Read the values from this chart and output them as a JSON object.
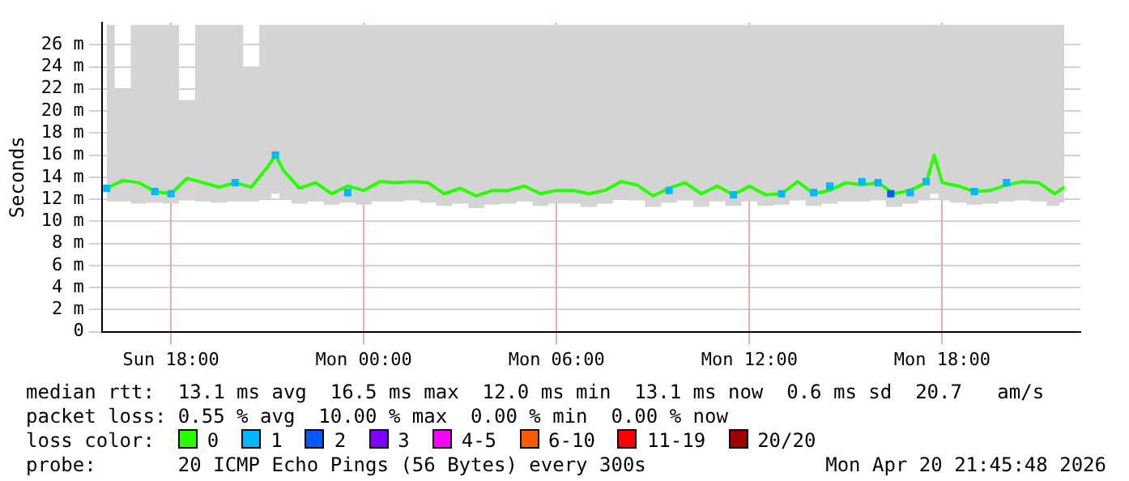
{
  "chart_data": {
    "type": "line",
    "ylabel": "Seconds",
    "xlim": [
      "2026-04-19T15:51",
      "2026-04-20T22:18"
    ],
    "ylim": [
      0,
      28
    ],
    "xticks": [
      {
        "value": "2026-04-19T18:00",
        "label": "Sun 18:00"
      },
      {
        "value": "2026-04-20T00:00",
        "label": "Mon 00:00"
      },
      {
        "value": "2026-04-20T06:00",
        "label": "Mon 06:00"
      },
      {
        "value": "2026-04-20T12:00",
        "label": "Mon 12:00"
      },
      {
        "value": "2026-04-20T18:00",
        "label": "Mon 18:00"
      }
    ],
    "yticks": [
      0,
      {
        "value": 2,
        "label": "2 m"
      },
      {
        "value": 4,
        "label": "4 m"
      },
      {
        "value": 6,
        "label": "6 m"
      },
      {
        "value": 8,
        "label": "8 m"
      },
      {
        "value": 10,
        "label": "10 m"
      },
      {
        "value": 12,
        "label": "12 m"
      },
      {
        "value": 14,
        "label": "14 m"
      },
      {
        "value": 16,
        "label": "16 m"
      },
      {
        "value": 18,
        "label": "18 m"
      },
      {
        "value": 20,
        "label": "20 m"
      },
      {
        "value": 22,
        "label": "22 m"
      },
      {
        "value": 24,
        "label": "24 m"
      },
      {
        "value": 26,
        "label": "26 m"
      }
    ],
    "grid": true,
    "legend": "bottom",
    "legend_title": "loss color:",
    "series": [
      {
        "name": "0",
        "color": "#26ff00",
        "x": [
          "2026-04-19T16:00",
          "2026-04-19T16:30",
          "2026-04-19T17:00",
          "2026-04-19T17:30",
          "2026-04-19T18:00",
          "2026-04-19T18:30",
          "2026-04-19T19:00",
          "2026-04-19T19:30",
          "2026-04-19T20:00",
          "2026-04-19T20:30",
          "2026-04-19T21:00",
          "2026-04-19T21:15",
          "2026-04-19T21:30",
          "2026-04-19T22:00",
          "2026-04-19T22:30",
          "2026-04-19T23:00",
          "2026-04-19T23:30",
          "2026-04-20T00:00",
          "2026-04-20T00:30",
          "2026-04-20T01:00",
          "2026-04-20T01:30",
          "2026-04-20T02:00",
          "2026-04-20T02:30",
          "2026-04-20T03:00",
          "2026-04-20T03:30",
          "2026-04-20T04:00",
          "2026-04-20T04:30",
          "2026-04-20T05:00",
          "2026-04-20T05:30",
          "2026-04-20T06:00",
          "2026-04-20T06:30",
          "2026-04-20T07:00",
          "2026-04-20T07:30",
          "2026-04-20T08:00",
          "2026-04-20T08:30",
          "2026-04-20T09:00",
          "2026-04-20T09:30",
          "2026-04-20T10:00",
          "2026-04-20T10:30",
          "2026-04-20T11:00",
          "2026-04-20T11:30",
          "2026-04-20T12:00",
          "2026-04-20T12:30",
          "2026-04-20T13:00",
          "2026-04-20T13:30",
          "2026-04-20T14:00",
          "2026-04-20T14:30",
          "2026-04-20T15:00",
          "2026-04-20T15:30",
          "2026-04-20T16:00",
          "2026-04-20T16:30",
          "2026-04-20T17:00",
          "2026-04-20T17:30",
          "2026-04-20T17:45",
          "2026-04-20T18:00",
          "2026-04-20T18:30",
          "2026-04-20T19:00",
          "2026-04-20T19:30",
          "2026-04-20T20:00",
          "2026-04-20T20:30",
          "2026-04-20T21:00",
          "2026-04-20T21:30",
          "2026-04-20T21:48"
        ],
        "values": [
          13.0,
          13.7,
          13.5,
          12.7,
          12.5,
          13.9,
          13.5,
          13.1,
          13.5,
          13.1,
          14.9,
          16.0,
          14.6,
          13.0,
          13.5,
          12.5,
          13.2,
          12.8,
          13.6,
          13.5,
          13.6,
          13.5,
          12.5,
          13.0,
          12.3,
          12.8,
          12.8,
          13.2,
          12.5,
          12.8,
          12.8,
          12.5,
          12.8,
          13.6,
          13.3,
          12.3,
          13.0,
          13.5,
          12.5,
          13.2,
          12.4,
          13.2,
          12.4,
          12.5,
          13.6,
          12.5,
          12.8,
          13.5,
          13.3,
          13.5,
          12.5,
          12.8,
          13.5,
          16.0,
          13.5,
          13.2,
          12.7,
          12.8,
          13.3,
          13.6,
          13.5,
          12.5,
          13.1
        ],
        "lower": [
          11.8,
          11.8,
          11.6,
          11.7,
          11.6,
          11.9,
          11.8,
          11.7,
          11.8,
          11.8,
          12.0,
          12.5,
          12.0,
          11.6,
          11.8,
          11.5,
          11.7,
          11.5,
          11.8,
          11.8,
          11.9,
          11.7,
          11.4,
          11.6,
          11.2,
          11.5,
          11.6,
          11.8,
          11.4,
          11.6,
          11.6,
          11.3,
          11.6,
          12.0,
          11.9,
          11.3,
          11.7,
          11.9,
          11.3,
          11.8,
          11.4,
          11.8,
          11.4,
          11.5,
          11.9,
          11.4,
          11.6,
          11.8,
          11.8,
          11.9,
          11.3,
          11.6,
          11.9,
          12.5,
          11.9,
          11.7,
          11.5,
          11.6,
          11.8,
          11.9,
          11.8,
          11.4,
          11.7
        ],
        "upper": [
          27.8,
          22.0,
          27.8,
          27.8,
          27.8,
          21.0,
          27.8,
          27.8,
          27.8,
          24.0,
          27.8,
          27.8,
          27.8,
          27.8,
          27.8,
          27.8,
          27.8,
          27.8,
          27.8,
          27.8,
          27.8,
          27.8,
          27.8,
          27.8,
          27.8,
          27.8,
          27.8,
          27.8,
          27.8,
          27.8,
          27.8,
          27.8,
          27.8,
          27.8,
          27.8,
          27.8,
          27.8,
          27.8,
          27.8,
          27.8,
          27.8,
          27.8,
          27.8,
          27.8,
          27.8,
          27.8,
          27.8,
          27.8,
          27.8,
          27.8,
          27.8,
          27.8,
          27.8,
          27.8,
          27.8,
          27.8,
          27.8,
          27.8,
          27.8,
          27.8,
          27.8,
          27.8,
          27.8
        ]
      },
      {
        "name": "1",
        "color": "#00b8ff",
        "type": "scatter",
        "x": [
          "2026-04-19T16:00",
          "2026-04-19T17:30",
          "2026-04-19T18:00",
          "2026-04-19T20:00",
          "2026-04-19T21:15",
          "2026-04-19T23:30",
          "2026-04-20T09:30",
          "2026-04-20T11:30",
          "2026-04-20T13:00",
          "2026-04-20T14:00",
          "2026-04-20T14:30",
          "2026-04-20T15:30",
          "2026-04-20T16:00",
          "2026-04-20T17:00",
          "2026-04-20T17:30",
          "2026-04-20T19:00",
          "2026-04-20T20:00"
        ],
        "values": [
          13.0,
          12.7,
          12.5,
          13.5,
          16.0,
          12.6,
          12.8,
          12.4,
          12.5,
          12.6,
          13.2,
          13.6,
          13.5,
          12.6,
          13.6,
          12.7,
          13.5
        ]
      },
      {
        "name": "2",
        "color": "#0059ff",
        "type": "scatter",
        "x": [
          "2026-04-20T16:24"
        ],
        "values": [
          12.5
        ]
      },
      {
        "name": "3",
        "color": "#7f00ff",
        "type": "scatter"
      },
      {
        "name": "4-5",
        "color": "#ff00ff",
        "type": "scatter"
      },
      {
        "name": "6-10",
        "color": "#ff5a00",
        "type": "scatter"
      },
      {
        "name": "11-19",
        "color": "#ff0000",
        "type": "scatter"
      },
      {
        "name": "20/20",
        "color": "#a10000",
        "type": "scatter"
      }
    ],
    "annotations": [
      "median rtt:  13.1 ms avg  16.5 ms max  12.0 ms min  13.1 ms now  0.6 ms sd  20.7   am/s",
      "packet loss: 0.55 % avg  10.00 % max  0.00 % min  0.00 % now",
      "probe:       20 ICMP Echo Pings (56 Bytes) every 300s",
      "Mon Apr 20 21:45:48 2026"
    ]
  }
}
